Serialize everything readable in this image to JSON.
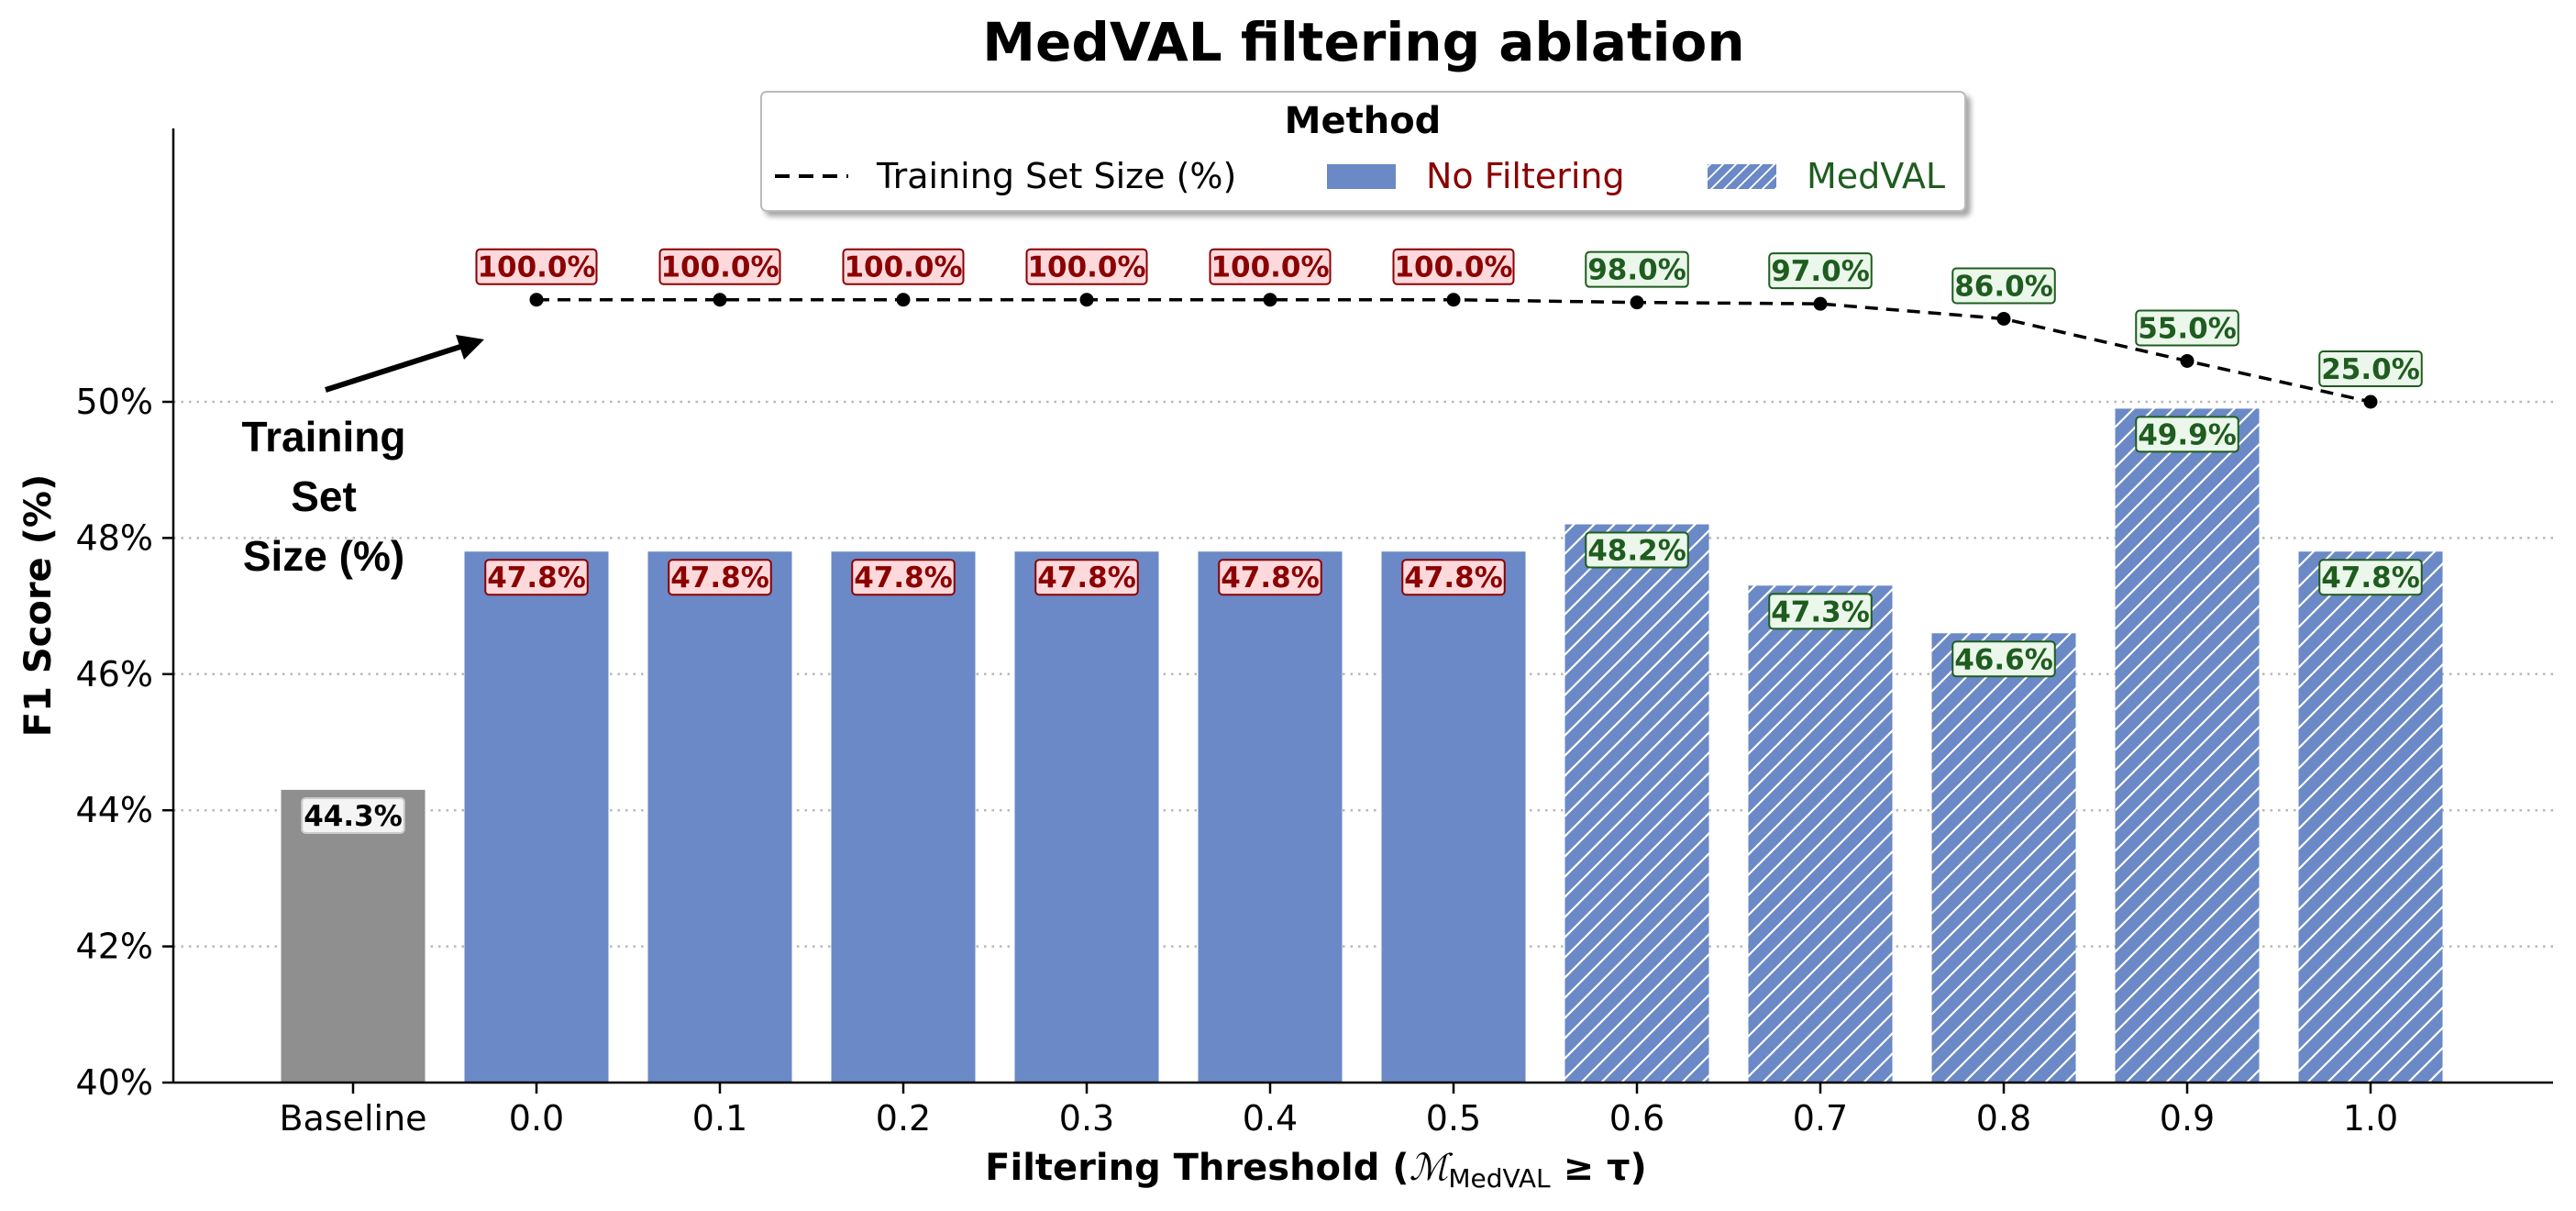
{
  "chart_data": {
    "type": "bar",
    "title": "MedVAL filtering ablation",
    "xlabel_main": "Filtering Threshold (",
    "xlabel_math": "ℳ",
    "xlabel_sub": "MedVAL",
    "xlabel_rest": " ≥ τ)",
    "ylabel": "F1 Score (%)",
    "ylim": [
      40,
      52
    ],
    "yticks": [
      {
        "value": 40,
        "label": "40%"
      },
      {
        "value": 42,
        "label": "42%"
      },
      {
        "value": 44,
        "label": "44%"
      },
      {
        "value": 46,
        "label": "46%"
      },
      {
        "value": 48,
        "label": "48%"
      },
      {
        "value": 50,
        "label": "50%"
      }
    ],
    "grid": "horizontal dotted",
    "legend": {
      "title": "Method",
      "placement": "top-center",
      "items": [
        {
          "label": "Training Set Size (%)",
          "kind": "dashed-line",
          "color": "#000000"
        },
        {
          "label": "No Filtering",
          "kind": "solid-bar",
          "color": "#8b0000"
        },
        {
          "label": "MedVAL",
          "kind": "hatched-bar",
          "color": "#1f5c1f"
        }
      ]
    },
    "categories": [
      "Baseline",
      "0.0",
      "0.1",
      "0.2",
      "0.3",
      "0.4",
      "0.5",
      "0.6",
      "0.7",
      "0.8",
      "0.9",
      "1.0"
    ],
    "bars": [
      {
        "category": "Baseline",
        "value": 44.3,
        "label": "44.3%",
        "group": "baseline"
      },
      {
        "category": "0.0",
        "value": 47.8,
        "label": "47.8%",
        "group": "nofilter"
      },
      {
        "category": "0.1",
        "value": 47.8,
        "label": "47.8%",
        "group": "nofilter"
      },
      {
        "category": "0.2",
        "value": 47.8,
        "label": "47.8%",
        "group": "nofilter"
      },
      {
        "category": "0.3",
        "value": 47.8,
        "label": "47.8%",
        "group": "nofilter"
      },
      {
        "category": "0.4",
        "value": 47.8,
        "label": "47.8%",
        "group": "nofilter"
      },
      {
        "category": "0.5",
        "value": 47.8,
        "label": "47.8%",
        "group": "nofilter"
      },
      {
        "category": "0.6",
        "value": 48.2,
        "label": "48.2%",
        "group": "medval"
      },
      {
        "category": "0.7",
        "value": 47.3,
        "label": "47.3%",
        "group": "medval"
      },
      {
        "category": "0.8",
        "value": 46.6,
        "label": "46.6%",
        "group": "medval"
      },
      {
        "category": "0.9",
        "value": 49.9,
        "label": "49.9%",
        "group": "medval"
      },
      {
        "category": "1.0",
        "value": 47.8,
        "label": "47.8%",
        "group": "medval"
      }
    ],
    "training_set_size": {
      "name": "Training Set Size (%)",
      "style": "dashed",
      "mapping": "plotted as F1 = 50 + 1.5 × (size/100 − 0.25)/0.75",
      "points": [
        {
          "category": "0.0",
          "value": 100.0,
          "label": "100.0%"
        },
        {
          "category": "0.1",
          "value": 100.0,
          "label": "100.0%"
        },
        {
          "category": "0.2",
          "value": 100.0,
          "label": "100.0%"
        },
        {
          "category": "0.3",
          "value": 100.0,
          "label": "100.0%"
        },
        {
          "category": "0.4",
          "value": 100.0,
          "label": "100.0%"
        },
        {
          "category": "0.5",
          "value": 100.0,
          "label": "100.0%"
        },
        {
          "category": "0.6",
          "value": 98.0,
          "label": "98.0%"
        },
        {
          "category": "0.7",
          "value": 97.0,
          "label": "97.0%"
        },
        {
          "category": "0.8",
          "value": 86.0,
          "label": "86.0%"
        },
        {
          "category": "0.9",
          "value": 55.0,
          "label": "55.0%"
        },
        {
          "category": "1.0",
          "value": 25.0,
          "label": "25.0%"
        }
      ]
    },
    "annotation": {
      "lines": [
        "Training",
        "Set",
        "Size (%)"
      ]
    },
    "colors": {
      "baseline_bar": "#8f8f8f",
      "nofilter_bar": "#6a89c6",
      "medval_bar": "#6a89c6",
      "nofilter_text": "#8b0000",
      "nofilter_box_fill": "#fdd9dc",
      "medval_text": "#1f5c1f",
      "medval_box_fill": "#eaf7ea"
    }
  }
}
